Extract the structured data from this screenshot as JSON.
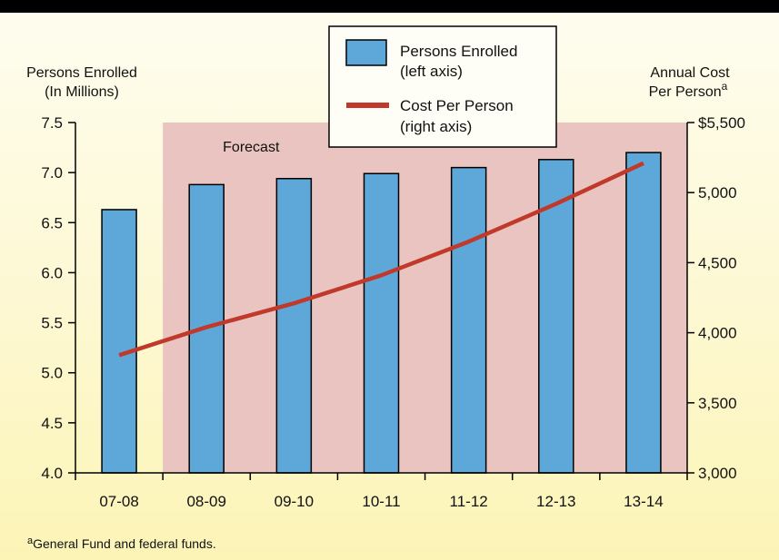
{
  "chart_data": {
    "type": "bar",
    "categories": [
      "07-08",
      "08-09",
      "09-10",
      "10-11",
      "11-12",
      "12-13",
      "13-14"
    ],
    "series": [
      {
        "name": "Persons Enrolled",
        "name_line2": "(left axis)",
        "type": "bar",
        "axis": "left",
        "values": [
          6.63,
          6.88,
          6.94,
          6.99,
          7.05,
          7.13,
          7.2
        ],
        "color": "#5ea8d9"
      },
      {
        "name": "Cost Per Person",
        "name_line2": "(right axis)",
        "type": "line",
        "axis": "right",
        "values": [
          3840,
          4040,
          4210,
          4410,
          4650,
          4920,
          5210
        ],
        "color": "#c0392b"
      }
    ],
    "left_axis": {
      "label_line1": "Persons Enrolled",
      "label_line2": "(In Millions)",
      "ylim": [
        4.0,
        7.5
      ],
      "ticks": [
        "4.0",
        "4.5",
        "5.0",
        "5.5",
        "6.0",
        "6.5",
        "7.0",
        "7.5"
      ],
      "tick_values": [
        4.0,
        4.5,
        5.0,
        5.5,
        6.0,
        6.5,
        7.0,
        7.5
      ]
    },
    "right_axis": {
      "label_line1": "Annual Cost",
      "label_line2": "Per Person",
      "label_superscript": "a",
      "ylim": [
        3000,
        5500
      ],
      "ticks": [
        "3,000",
        "3,500",
        "4,000",
        "4,500",
        "5,000",
        "$5,500"
      ],
      "tick_values": [
        3000,
        3500,
        4000,
        4500,
        5000,
        5500
      ]
    },
    "forecast_label": "Forecast",
    "forecast_start_category": "08-09",
    "legend_position": "top-center",
    "grid": false,
    "footnote_marker": "a",
    "footnote": "General Fund and federal funds.",
    "colors": {
      "forecast_shade": "#e9c4c0",
      "background": "#fdf8d2",
      "bar_stroke": "#000000"
    }
  }
}
